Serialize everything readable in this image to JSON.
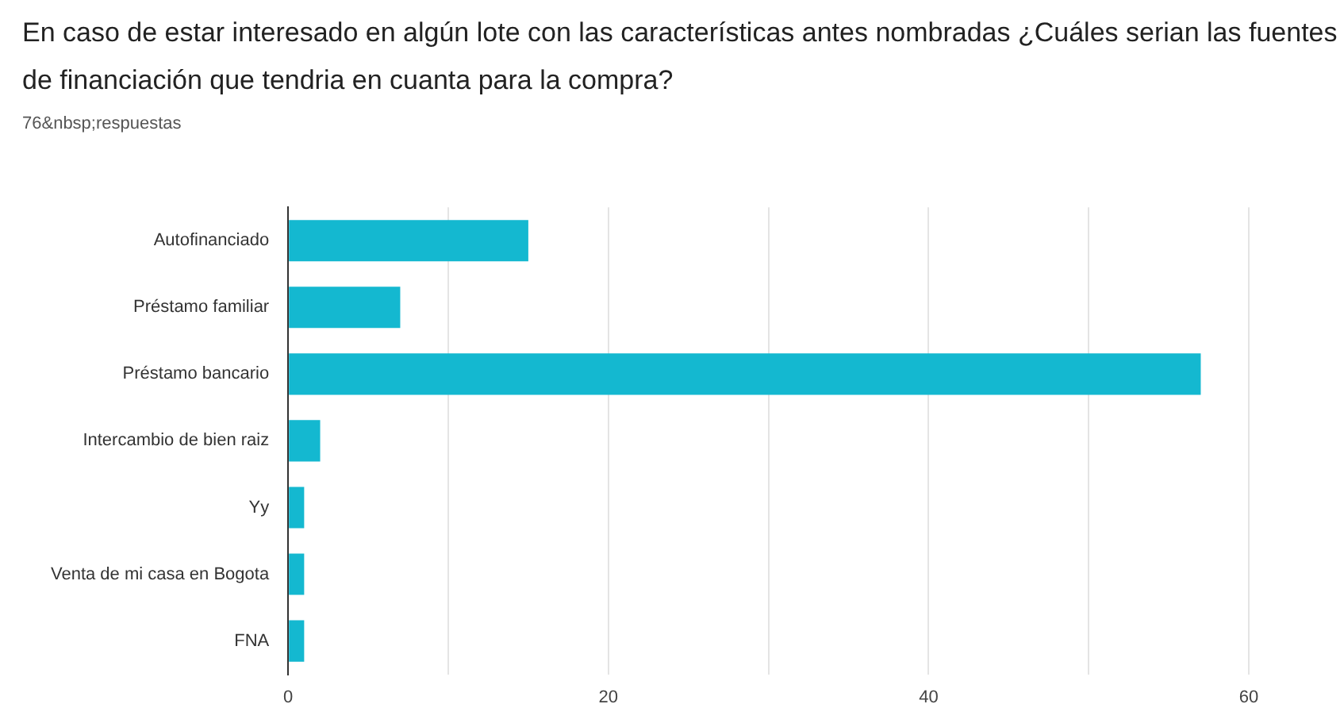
{
  "chart_data": {
    "type": "bar",
    "orientation": "horizontal",
    "title": "En caso de estar interesado en algún lote con las características antes nombradas ¿Cuáles serian las fuentes de financiación que tendria en cuanta para la compra?",
    "subtitle": "76&nbsp;respuestas",
    "categories": [
      "Autofinanciado",
      "Préstamo familiar",
      "Préstamo bancario",
      "Intercambio de bien raiz",
      "Yy",
      "Venta de mi casa en Bogota",
      "FNA"
    ],
    "values": [
      15,
      7,
      57,
      2,
      1,
      1,
      1
    ],
    "color": "#14b8d0",
    "xlim": [
      0,
      60
    ],
    "xticks": [
      0,
      {
        "value": 10,
        "label": null
      },
      20,
      {
        "value": 30,
        "label": null
      },
      40,
      {
        "value": 50,
        "label": null
      },
      60
    ],
    "grid": "x"
  }
}
